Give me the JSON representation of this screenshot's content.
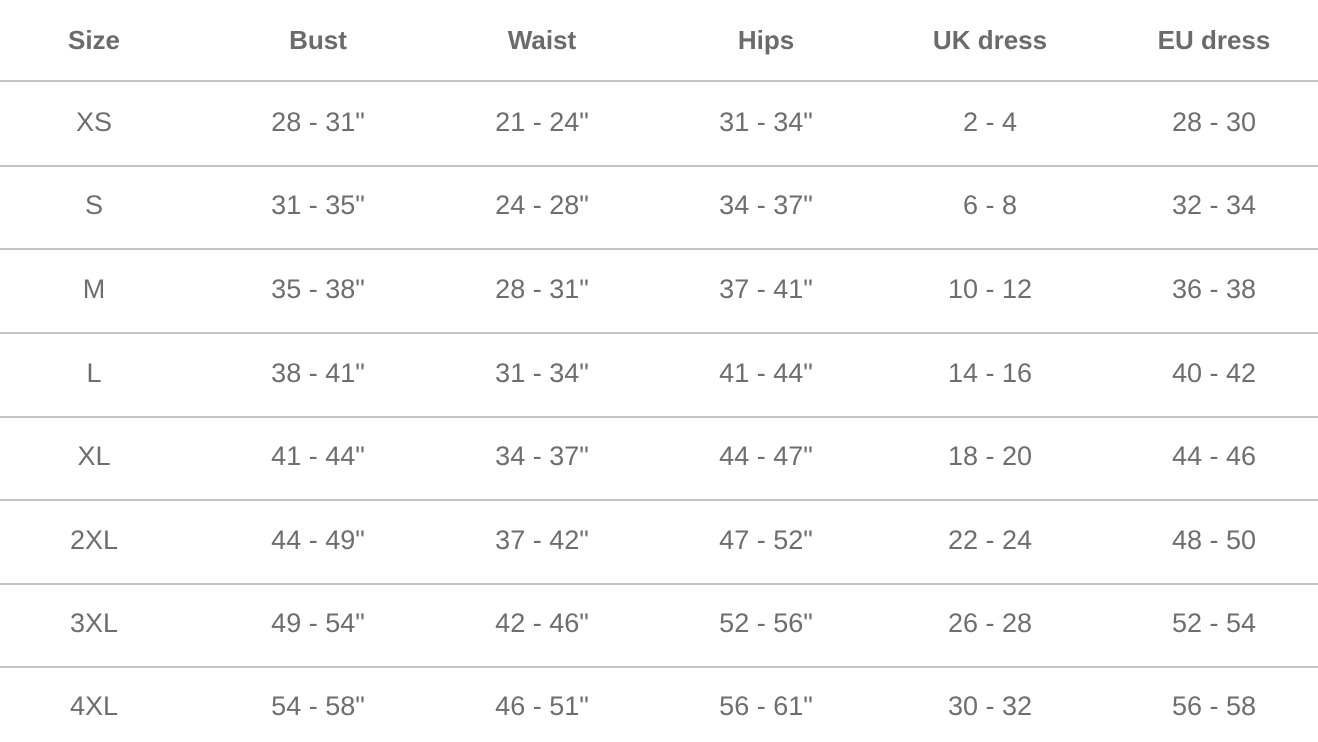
{
  "table": {
    "header": [
      "Size",
      "Bust",
      "Waist",
      "Hips",
      "UK dress",
      "EU dress"
    ],
    "rows": [
      [
        "XS",
        "28 - 31\"",
        "21 - 24\"",
        "31 - 34\"",
        "2 - 4",
        "28 - 30"
      ],
      [
        "S",
        "31 - 35\"",
        "24 - 28\"",
        "34 - 37\"",
        "6 - 8",
        "32 - 34"
      ],
      [
        "M",
        "35 - 38\"",
        "28 - 31\"",
        "37 - 41\"",
        "10 - 12",
        "36 - 38"
      ],
      [
        "L",
        "38 - 41\"",
        "31 - 34\"",
        "41 - 44\"",
        "14 - 16",
        "40 - 42"
      ],
      [
        "XL",
        "41 - 44\"",
        "34 - 37\"",
        "44 - 47\"",
        "18 - 20",
        "44 - 46"
      ],
      [
        "2XL",
        "44 - 49\"",
        "37 - 42\"",
        "47 - 52\"",
        "22 - 24",
        "48 - 50"
      ],
      [
        "3XL",
        "49 - 54\"",
        "42 - 46\"",
        "52 - 56\"",
        "26 - 28",
        "52 - 54"
      ],
      [
        "4XL",
        "54 - 58\"",
        "46 - 51\"",
        "56 - 61\"",
        "30 - 32",
        "56 - 58"
      ]
    ]
  }
}
